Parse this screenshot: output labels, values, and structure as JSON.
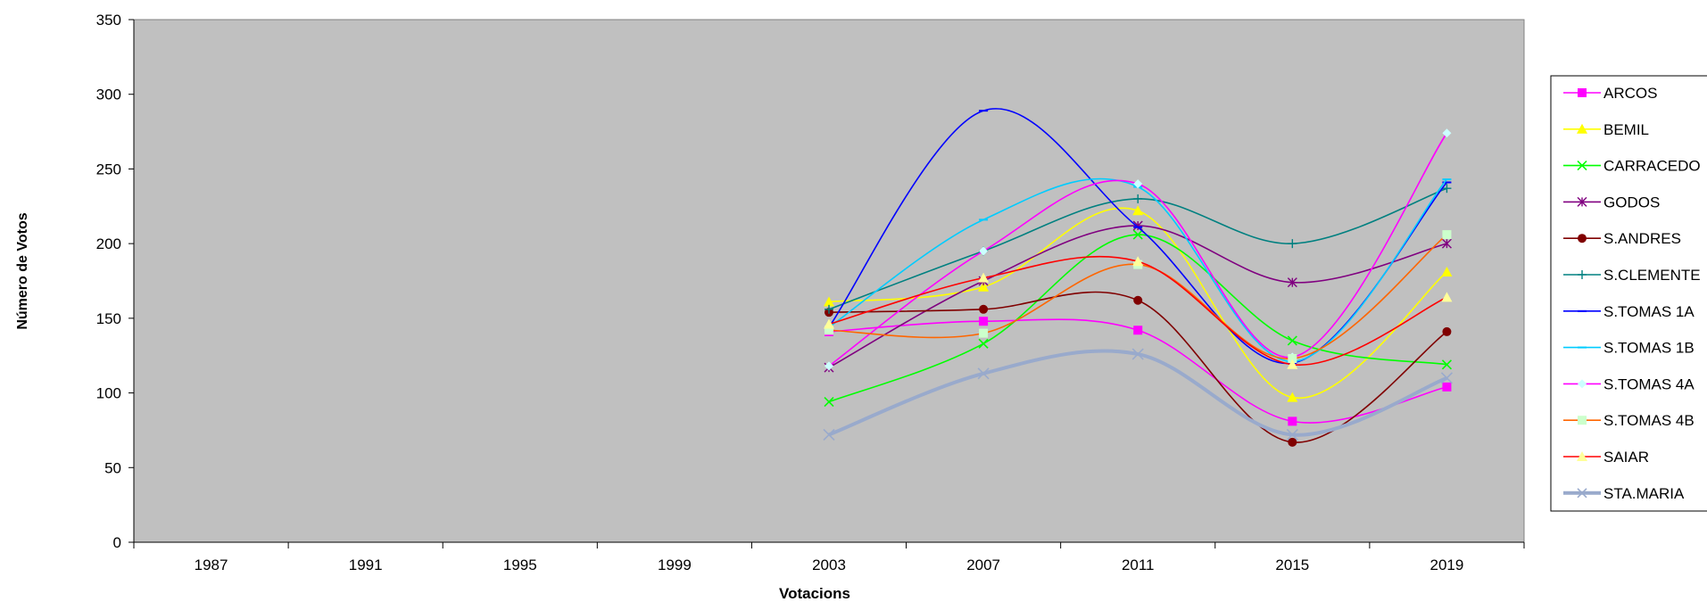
{
  "chart_data": {
    "type": "line",
    "title": "",
    "xlabel": "Votacions",
    "ylabel": "Número de Votos",
    "categories": [
      "1987",
      "1991",
      "1995",
      "1999",
      "2003",
      "2007",
      "2011",
      "2015",
      "2019"
    ],
    "ylim": [
      0,
      350
    ],
    "yticks": [
      "0",
      "50",
      "100",
      "150",
      "200",
      "250",
      "300",
      "350"
    ],
    "grid": false,
    "smoothed": true,
    "plot_background": "#c0c0c0",
    "legend_position": "right",
    "series": [
      {
        "name": "ARCOS",
        "color": "#ff00ff",
        "marker": "square",
        "values": [
          null,
          null,
          null,
          null,
          141,
          148,
          142,
          81,
          104
        ]
      },
      {
        "name": "BEMIL",
        "color": "#ffff00",
        "marker": "triangle",
        "values": [
          null,
          null,
          null,
          null,
          161,
          171,
          222,
          97,
          181
        ]
      },
      {
        "name": "CARRACEDO",
        "color": "#00ff00",
        "marker": "x",
        "values": [
          null,
          null,
          null,
          null,
          94,
          133,
          206,
          135,
          119
        ]
      },
      {
        "name": "GODOS",
        "color": "#800080",
        "marker": "star",
        "values": [
          null,
          null,
          null,
          null,
          117,
          175,
          212,
          174,
          200
        ]
      },
      {
        "name": "S.ANDRES",
        "color": "#800000",
        "marker": "circle",
        "values": [
          null,
          null,
          null,
          null,
          154,
          156,
          162,
          67,
          141
        ]
      },
      {
        "name": "S.CLEMENTE",
        "color": "#008080",
        "marker": "plus",
        "values": [
          null,
          null,
          null,
          null,
          156,
          195,
          230,
          200,
          237
        ]
      },
      {
        "name": "S.TOMAS 1A",
        "color": "#0000ff",
        "marker": "dash",
        "values": [
          null,
          null,
          null,
          null,
          144,
          289,
          211,
          120,
          241
        ]
      },
      {
        "name": "S.TOMAS 1B",
        "color": "#00ccff",
        "marker": "dash",
        "values": [
          null,
          null,
          null,
          null,
          144,
          216,
          238,
          121,
          243
        ]
      },
      {
        "name": "S.TOMAS 4A",
        "color": "#ff00ff",
        "marker": "diamond",
        "values": [
          null,
          null,
          null,
          null,
          118,
          195,
          240,
          124,
          274
        ]
      },
      {
        "name": "S.TOMAS 4B",
        "color": "#ff6600",
        "marker": "square-light",
        "values": [
          null,
          null,
          null,
          null,
          142,
          140,
          186,
          123,
          206
        ]
      },
      {
        "name": "SAIAR",
        "color": "#ff0000",
        "marker": "triangle-light",
        "values": [
          null,
          null,
          null,
          null,
          146,
          177,
          188,
          119,
          164
        ]
      },
      {
        "name": "STA.MARIA",
        "color": "#99aacc",
        "marker": "x",
        "thick": true,
        "values": [
          null,
          null,
          null,
          null,
          72,
          113,
          126,
          72,
          110
        ]
      }
    ]
  }
}
